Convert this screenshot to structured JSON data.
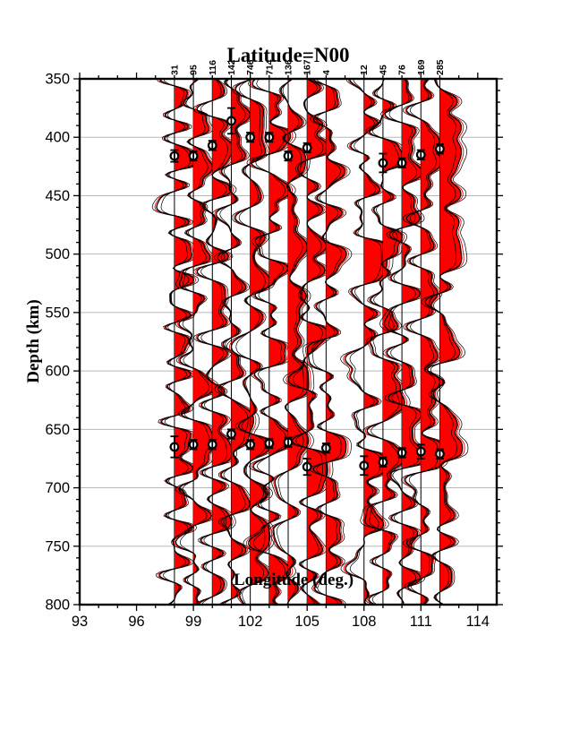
{
  "title": "Latitude=N00",
  "axes": {
    "x_label": "Longitude (deg.)",
    "y_label": "Depth (km)",
    "x_range": [
      93,
      115
    ],
    "y_range": [
      350,
      800
    ],
    "x_major_ticks": [
      93,
      96,
      99,
      102,
      105,
      108,
      111,
      114
    ],
    "x_minor_step": 1,
    "y_major_ticks": [
      350,
      400,
      450,
      500,
      550,
      600,
      650,
      700,
      750,
      800
    ],
    "y_minor_step": 10,
    "grid": "horizontal-major"
  },
  "colors": {
    "fill_positive": "#ff0000",
    "trace_line": "#000000",
    "grid_line": "#b8b8b8",
    "frame": "#000000",
    "pick_fill": "#ffffff",
    "pick_stroke": "#000000"
  },
  "chart_data": {
    "type": "line",
    "subtype": "receiver-function-wiggle-section",
    "title": "Latitude=N00",
    "xlabel": "Longitude (deg.)",
    "ylabel": "Depth (km)",
    "xlim": [
      93,
      115
    ],
    "ylim": [
      350,
      800
    ],
    "traces": [
      {
        "lon": 98,
        "count": "31",
        "seed": 3,
        "d410": {
          "depth": 416,
          "err": 5
        },
        "d660": {
          "depth": 665,
          "err": 9
        },
        "bumps": [
          [
            455,
            -10
          ],
          [
            520,
            9
          ],
          [
            590,
            7
          ],
          [
            730,
            8
          ]
        ]
      },
      {
        "lon": 99,
        "count": "95",
        "seed": 10,
        "d410": {
          "depth": 416,
          "err": 4
        },
        "d660": {
          "depth": 663,
          "err": 4
        },
        "bumps": [
          [
            470,
            8
          ],
          [
            560,
            -8
          ],
          [
            620,
            7
          ],
          [
            760,
            8
          ]
        ]
      },
      {
        "lon": 100,
        "count": "116",
        "seed": 17,
        "d410": {
          "depth": 407,
          "err": 4
        },
        "d660": {
          "depth": 663,
          "err": 4
        },
        "bumps": [
          [
            430,
            9
          ],
          [
            545,
            8
          ],
          [
            640,
            -7
          ],
          [
            720,
            9
          ]
        ]
      },
      {
        "lon": 101,
        "count": "142",
        "seed": 24,
        "d410": {
          "depth": 386,
          "err": 11
        },
        "d660": {
          "depth": 654,
          "err": 4
        },
        "bumps": [
          [
            470,
            -8
          ],
          [
            640,
            14
          ],
          [
            710,
            8
          ]
        ]
      },
      {
        "lon": 102,
        "count": "746",
        "seed": 31,
        "d410": {
          "depth": 400,
          "err": 4
        },
        "d660": {
          "depth": 663,
          "err": 4
        },
        "bumps": [
          [
            520,
            13
          ],
          [
            585,
            -8
          ],
          [
            750,
            9
          ]
        ]
      },
      {
        "lon": 103,
        "count": "714",
        "seed": 38,
        "d410": {
          "depth": 400,
          "err": 4
        },
        "d660": {
          "depth": 662,
          "err": 4
        },
        "bumps": [
          [
            450,
            9
          ],
          [
            560,
            9
          ],
          [
            700,
            -7
          ],
          [
            770,
            8
          ]
        ]
      },
      {
        "lon": 104,
        "count": "136",
        "seed": 45,
        "d410": {
          "depth": 416,
          "err": 4
        },
        "d660": {
          "depth": 661,
          "err": 4
        },
        "bumps": [
          [
            480,
            10
          ],
          [
            620,
            8
          ],
          [
            740,
            -6
          ]
        ]
      },
      {
        "lon": 105,
        "count": "167",
        "seed": 52,
        "d410": {
          "depth": 409,
          "err": 4
        },
        "d660": {
          "depth": 682,
          "err": 7
        },
        "bumps": [
          [
            490,
            15
          ],
          [
            570,
            8
          ],
          [
            720,
            9
          ]
        ]
      },
      {
        "lon": 106,
        "count": "4",
        "seed": 59,
        "d410": null,
        "d660": {
          "depth": 666,
          "err": 4
        },
        "bumps": [
          [
            430,
            10
          ],
          [
            500,
            12
          ],
          [
            600,
            -9
          ],
          [
            740,
            10
          ]
        ]
      },
      {
        "lon": 108,
        "count": "12",
        "seed": 66,
        "d410": null,
        "d660": {
          "depth": 681,
          "err": 8
        },
        "bumps": [
          [
            505,
            40
          ],
          [
            600,
            -10
          ],
          [
            720,
            12
          ]
        ]
      },
      {
        "lon": 109,
        "count": "45",
        "seed": 73,
        "d410": {
          "depth": 422,
          "err": 8
        },
        "d660": {
          "depth": 678,
          "err": 4
        },
        "bumps": [
          [
            505,
            16
          ],
          [
            620,
            20
          ],
          [
            730,
            -8
          ]
        ]
      },
      {
        "lon": 110,
        "count": "76",
        "seed": 80,
        "d410": {
          "depth": 422,
          "err": 4
        },
        "d660": {
          "depth": 670,
          "err": 4
        },
        "bumps": [
          [
            450,
            12
          ],
          [
            560,
            -9
          ],
          [
            640,
            10
          ],
          [
            760,
            10
          ]
        ]
      },
      {
        "lon": 111,
        "count": "169",
        "seed": 87,
        "d410": {
          "depth": 415,
          "err": 4
        },
        "d660": {
          "depth": 669,
          "err": 6
        },
        "bumps": [
          [
            420,
            10
          ],
          [
            530,
            9
          ],
          [
            610,
            8
          ],
          [
            700,
            -8
          ]
        ]
      },
      {
        "lon": 112,
        "count": "285",
        "seed": 94,
        "d410": {
          "depth": 410,
          "err": 4
        },
        "d660": {
          "depth": 671,
          "err": 4
        },
        "bumps": [
          [
            390,
            14
          ],
          [
            500,
            13
          ],
          [
            580,
            10
          ],
          [
            660,
            14
          ],
          [
            740,
            10
          ]
        ]
      }
    ]
  }
}
